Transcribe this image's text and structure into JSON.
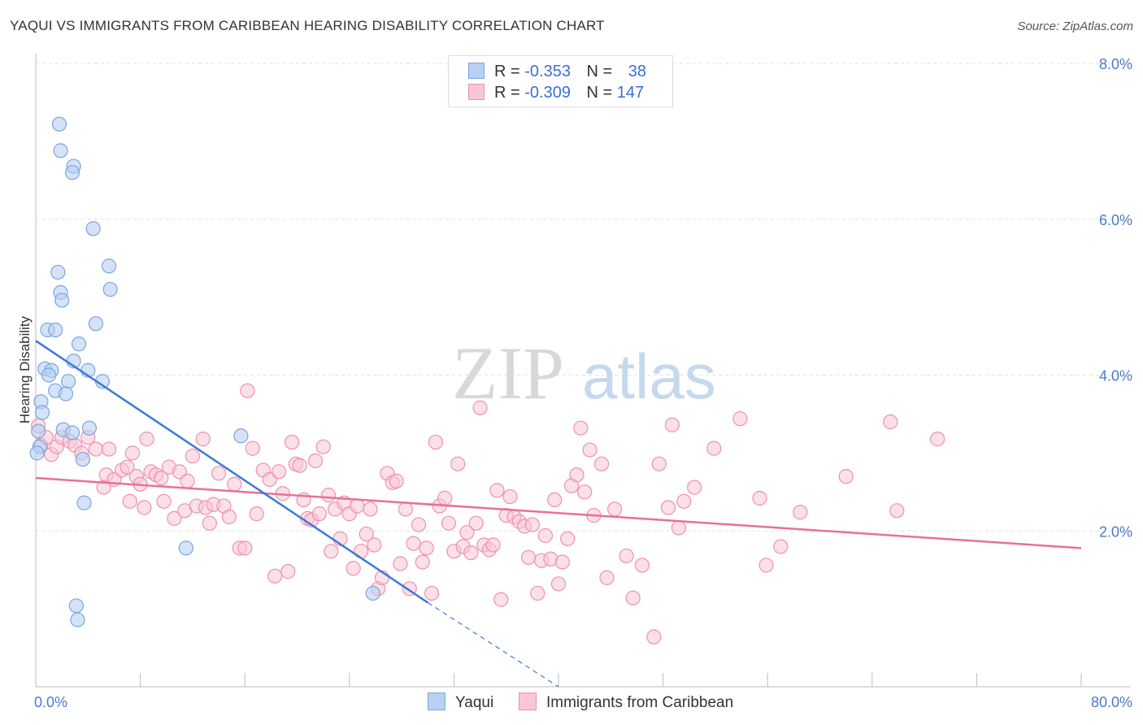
{
  "title": "YAQUI VS IMMIGRANTS FROM CARIBBEAN HEARING DISABILITY CORRELATION CHART",
  "source": "Source: ZipAtlas.com",
  "watermark": {
    "zip": "ZIP",
    "atlas": "atlas"
  },
  "legend": {
    "rows": [
      {
        "r_label": "R =",
        "r_value": "-0.353",
        "n_label": "N =",
        "n_value": "38"
      },
      {
        "r_label": "R =",
        "r_value": "-0.309",
        "n_label": "N =",
        "n_value": "147"
      }
    ]
  },
  "bottom_legend": {
    "series1": "Yaqui",
    "series2": "Immigrants from Caribbean"
  },
  "colors": {
    "yaqui_fill": "#b8d0f2",
    "yaqui_stroke": "#7aa6e0",
    "yaqui_line": "#3a7bd5",
    "carib_fill": "#f9c6d6",
    "carib_stroke": "#ee90ae",
    "carib_line": "#e8709a",
    "tick": "#4a7bc8"
  },
  "chart_data": {
    "type": "scatter",
    "title": "YAQUI VS IMMIGRANTS FROM CARIBBEAN HEARING DISABILITY CORRELATION CHART",
    "xlabel": "",
    "ylabel": "Hearing Disability",
    "xlim": [
      0,
      80
    ],
    "ylim": [
      0,
      8
    ],
    "x_tick_labels": [
      "0.0%",
      "80.0%"
    ],
    "y_ticks": [
      2,
      4,
      6,
      8
    ],
    "y_tick_labels": [
      "2.0%",
      "4.0%",
      "6.0%",
      "8.0%"
    ],
    "series": [
      {
        "name": "Yaqui",
        "r": -0.353,
        "n": 38,
        "trend": {
          "x": [
            0,
            30
          ],
          "y": [
            4.44,
            1.08
          ]
        },
        "trend_extension": {
          "x": [
            30,
            40
          ],
          "y": [
            1.08,
            0.0
          ]
        },
        "points": [
          [
            1.8,
            7.22
          ],
          [
            1.9,
            6.88
          ],
          [
            2.9,
            6.68
          ],
          [
            2.8,
            6.6
          ],
          [
            4.4,
            5.88
          ],
          [
            5.6,
            5.4
          ],
          [
            1.7,
            5.32
          ],
          [
            5.7,
            5.1
          ],
          [
            1.9,
            5.06
          ],
          [
            2.0,
            4.96
          ],
          [
            4.6,
            4.66
          ],
          [
            0.9,
            4.58
          ],
          [
            1.5,
            4.58
          ],
          [
            3.3,
            4.4
          ],
          [
            2.9,
            4.18
          ],
          [
            0.7,
            4.08
          ],
          [
            1.2,
            4.06
          ],
          [
            1.0,
            4.0
          ],
          [
            2.5,
            3.92
          ],
          [
            5.1,
            3.92
          ],
          [
            4.0,
            4.06
          ],
          [
            1.5,
            3.8
          ],
          [
            2.3,
            3.76
          ],
          [
            0.4,
            3.66
          ],
          [
            0.5,
            3.52
          ],
          [
            0.2,
            3.28
          ],
          [
            2.1,
            3.3
          ],
          [
            2.8,
            3.26
          ],
          [
            4.1,
            3.32
          ],
          [
            15.7,
            3.22
          ],
          [
            0.3,
            3.08
          ],
          [
            0.1,
            3.0
          ],
          [
            3.6,
            2.92
          ],
          [
            3.7,
            2.36
          ],
          [
            11.5,
            1.78
          ],
          [
            3.1,
            1.04
          ],
          [
            3.2,
            0.86
          ],
          [
            25.8,
            1.2
          ]
        ]
      },
      {
        "name": "Immigrants from Caribbean",
        "r": -0.309,
        "n": 147,
        "trend": {
          "x": [
            0,
            80
          ],
          "y": [
            2.68,
            1.78
          ]
        },
        "points": [
          [
            0.2,
            3.35
          ],
          [
            0.4,
            3.1
          ],
          [
            0.8,
            3.2
          ],
          [
            1.2,
            2.98
          ],
          [
            1.6,
            3.08
          ],
          [
            2.0,
            3.2
          ],
          [
            2.6,
            3.15
          ],
          [
            3.0,
            3.1
          ],
          [
            3.5,
            3.0
          ],
          [
            4.0,
            3.2
          ],
          [
            4.6,
            3.05
          ],
          [
            5.2,
            2.56
          ],
          [
            5.6,
            3.05
          ],
          [
            5.4,
            2.72
          ],
          [
            6.0,
            2.66
          ],
          [
            6.6,
            2.78
          ],
          [
            7.0,
            2.82
          ],
          [
            7.2,
            2.38
          ],
          [
            7.4,
            3.0
          ],
          [
            7.7,
            2.7
          ],
          [
            8.0,
            2.6
          ],
          [
            8.3,
            2.3
          ],
          [
            8.5,
            3.18
          ],
          [
            8.8,
            2.76
          ],
          [
            9.2,
            2.72
          ],
          [
            9.6,
            2.68
          ],
          [
            9.8,
            2.38
          ],
          [
            10.2,
            2.82
          ],
          [
            10.6,
            2.16
          ],
          [
            11.0,
            2.76
          ],
          [
            11.4,
            2.26
          ],
          [
            11.6,
            2.64
          ],
          [
            12.0,
            2.96
          ],
          [
            12.3,
            2.32
          ],
          [
            12.8,
            3.18
          ],
          [
            13.0,
            2.3
          ],
          [
            13.3,
            2.1
          ],
          [
            13.6,
            2.34
          ],
          [
            14.0,
            2.74
          ],
          [
            14.4,
            2.32
          ],
          [
            14.8,
            2.18
          ],
          [
            15.2,
            2.6
          ],
          [
            15.6,
            1.78
          ],
          [
            16.0,
            1.78
          ],
          [
            16.2,
            3.8
          ],
          [
            16.6,
            3.06
          ],
          [
            16.9,
            2.22
          ],
          [
            17.4,
            2.78
          ],
          [
            17.9,
            2.66
          ],
          [
            18.3,
            1.42
          ],
          [
            18.6,
            2.76
          ],
          [
            18.9,
            2.48
          ],
          [
            19.3,
            1.48
          ],
          [
            19.6,
            3.14
          ],
          [
            19.9,
            2.86
          ],
          [
            20.2,
            2.84
          ],
          [
            20.5,
            2.4
          ],
          [
            20.8,
            2.16
          ],
          [
            21.1,
            2.14
          ],
          [
            21.4,
            2.9
          ],
          [
            21.7,
            2.22
          ],
          [
            22.0,
            3.08
          ],
          [
            22.4,
            2.46
          ],
          [
            22.6,
            1.74
          ],
          [
            22.9,
            2.28
          ],
          [
            23.3,
            1.9
          ],
          [
            23.6,
            2.36
          ],
          [
            24.0,
            2.22
          ],
          [
            24.3,
            1.52
          ],
          [
            24.6,
            2.32
          ],
          [
            24.9,
            1.74
          ],
          [
            25.3,
            1.96
          ],
          [
            25.6,
            2.28
          ],
          [
            25.9,
            1.82
          ],
          [
            26.2,
            1.26
          ],
          [
            26.5,
            1.4
          ],
          [
            26.9,
            2.74
          ],
          [
            27.3,
            2.62
          ],
          [
            27.6,
            2.64
          ],
          [
            27.9,
            1.58
          ],
          [
            28.3,
            2.28
          ],
          [
            28.6,
            1.26
          ],
          [
            28.9,
            1.84
          ],
          [
            29.3,
            2.08
          ],
          [
            29.6,
            1.6
          ],
          [
            29.9,
            1.78
          ],
          [
            30.3,
            1.2
          ],
          [
            30.6,
            3.14
          ],
          [
            30.9,
            2.32
          ],
          [
            31.3,
            2.42
          ],
          [
            31.6,
            2.1
          ],
          [
            32.0,
            1.74
          ],
          [
            32.3,
            2.86
          ],
          [
            32.7,
            1.8
          ],
          [
            33.0,
            1.98
          ],
          [
            33.3,
            1.72
          ],
          [
            33.7,
            2.1
          ],
          [
            34.0,
            3.58
          ],
          [
            34.3,
            1.82
          ],
          [
            34.7,
            1.76
          ],
          [
            35.0,
            1.82
          ],
          [
            35.3,
            2.52
          ],
          [
            35.6,
            1.12
          ],
          [
            36.0,
            2.2
          ],
          [
            36.3,
            2.44
          ],
          [
            36.6,
            2.18
          ],
          [
            37.0,
            2.12
          ],
          [
            37.4,
            2.06
          ],
          [
            37.7,
            1.66
          ],
          [
            38.0,
            2.08
          ],
          [
            38.4,
            1.2
          ],
          [
            38.7,
            1.62
          ],
          [
            39.0,
            1.94
          ],
          [
            39.4,
            1.64
          ],
          [
            39.7,
            2.4
          ],
          [
            40.0,
            1.32
          ],
          [
            40.3,
            1.6
          ],
          [
            40.7,
            1.9
          ],
          [
            41.0,
            2.58
          ],
          [
            41.4,
            2.72
          ],
          [
            41.7,
            3.32
          ],
          [
            42.0,
            2.5
          ],
          [
            42.4,
            3.04
          ],
          [
            42.7,
            2.2
          ],
          [
            43.3,
            2.86
          ],
          [
            43.7,
            1.4
          ],
          [
            44.3,
            2.28
          ],
          [
            45.2,
            1.68
          ],
          [
            45.7,
            1.14
          ],
          [
            46.4,
            1.56
          ],
          [
            47.3,
            0.64
          ],
          [
            47.7,
            2.86
          ],
          [
            48.4,
            2.3
          ],
          [
            48.7,
            3.36
          ],
          [
            49.2,
            2.04
          ],
          [
            49.6,
            2.38
          ],
          [
            50.4,
            2.56
          ],
          [
            51.9,
            3.06
          ],
          [
            53.9,
            3.44
          ],
          [
            55.4,
            2.42
          ],
          [
            55.9,
            1.56
          ],
          [
            57.0,
            1.8
          ],
          [
            58.5,
            2.24
          ],
          [
            62.0,
            2.7
          ],
          [
            65.4,
            3.4
          ],
          [
            65.9,
            2.26
          ],
          [
            69.0,
            3.18
          ]
        ]
      }
    ]
  }
}
